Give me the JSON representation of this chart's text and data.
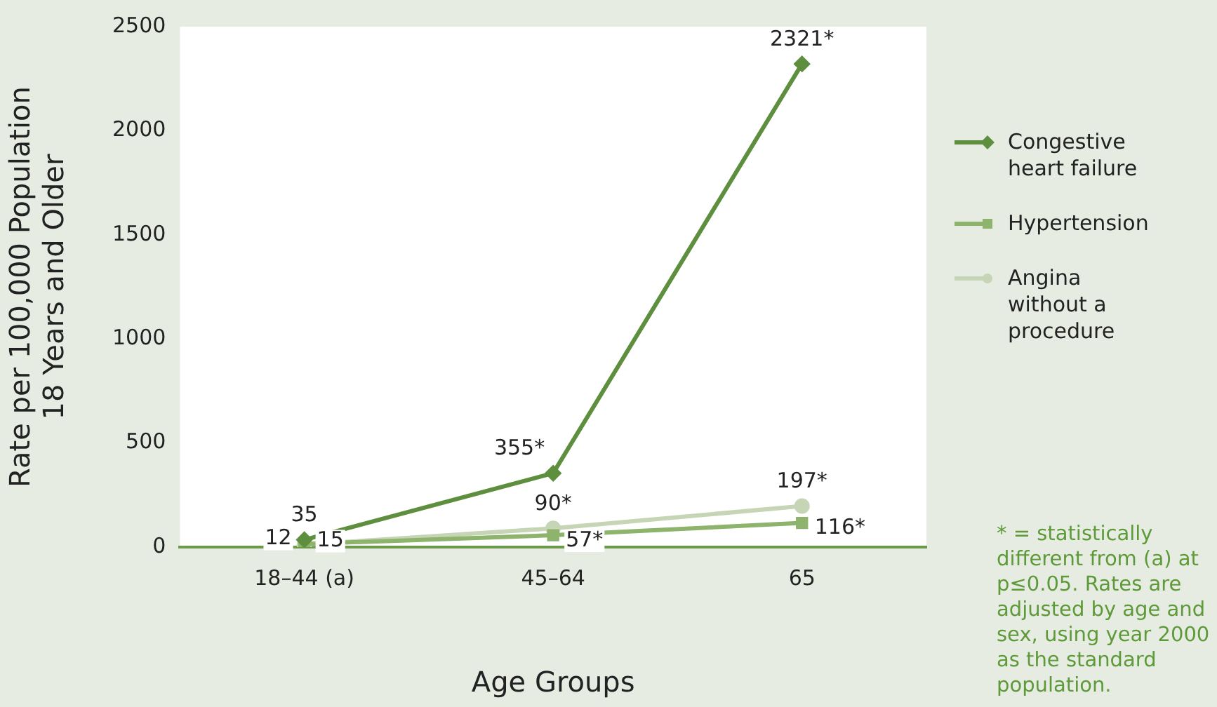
{
  "chart_data": {
    "type": "line",
    "xlabel": "Age Groups",
    "ylabel": "Rate per 100,000 Population\n18 Years and Older",
    "categories": [
      "18–44 (a)",
      "45–64",
      "65"
    ],
    "series": [
      {
        "name": "Congestive heart failure",
        "color": "#5e8f3e",
        "marker": "diamond",
        "values": [
          35,
          355,
          2321
        ],
        "value_labels": [
          "35",
          "355*",
          "2321*"
        ]
      },
      {
        "name": "Hypertension",
        "color": "#8db36c",
        "marker": "square",
        "values": [
          15,
          57,
          116
        ],
        "value_labels": [
          "15",
          "57*",
          "116*"
        ]
      },
      {
        "name": "Angina without a procedure",
        "color": "#c5d5b5",
        "marker": "circle",
        "values": [
          12,
          90,
          197
        ],
        "value_labels": [
          "12",
          "90*",
          "197*"
        ]
      }
    ],
    "ylim": [
      0,
      2500
    ],
    "yticks": [
      0,
      500,
      1000,
      1500,
      2000,
      2500
    ],
    "grid": false,
    "legend": "right",
    "line_style": "solid",
    "annotations": [
      "* = statistically different from (a) at p≤0.05. Rates are adjusted by age and sex, using year 2000 as the standard population."
    ]
  }
}
